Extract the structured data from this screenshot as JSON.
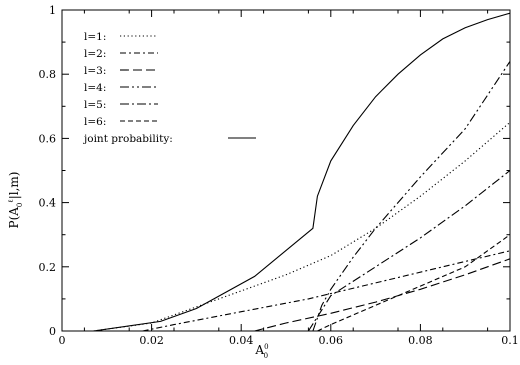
{
  "chart_data": {
    "type": "line",
    "xlabel": "A",
    "xlabel_super": "0",
    "xlabel_sub": "0",
    "ylabel": "P(A",
    "ylabel_sub": "0",
    "ylabel_super": "ℓ",
    "ylabel_tail": "|l,m)",
    "xlim": [
      0,
      0.1
    ],
    "ylim": [
      0,
      1
    ],
    "xticks": [
      0,
      0.02,
      0.04,
      0.06,
      0.08,
      0.1
    ],
    "xtick_labels": [
      "0",
      "0.02",
      "0.04",
      "0.06",
      "0.08",
      "0.1"
    ],
    "yticks": [
      0,
      0.2,
      0.4,
      0.6,
      0.8,
      1
    ],
    "ytick_labels": [
      "0",
      "0.2",
      "0.4",
      "0.6",
      "0.8",
      "1"
    ],
    "grid": false,
    "legend_position": "top-left",
    "series": [
      {
        "name": "l=1:",
        "dash": "1.2 2.6",
        "x": [
          0.007,
          0.02,
          0.03,
          0.04,
          0.05,
          0.06,
          0.07,
          0.08,
          0.09,
          0.1
        ],
        "y": [
          0.0,
          0.025,
          0.075,
          0.125,
          0.175,
          0.235,
          0.32,
          0.42,
          0.53,
          0.65
        ]
      },
      {
        "name": "l=2:",
        "dash": "6 3 2 3",
        "x": [
          0.018,
          0.025,
          0.04,
          0.055,
          0.07,
          0.085,
          0.1
        ],
        "y": [
          0.0,
          0.02,
          0.06,
          0.1,
          0.15,
          0.2,
          0.25
        ]
      },
      {
        "name": "l=3:",
        "dash": "9 4",
        "x": [
          0.043,
          0.05,
          0.06,
          0.07,
          0.08,
          0.09,
          0.1
        ],
        "y": [
          0.0,
          0.025,
          0.055,
          0.09,
          0.13,
          0.175,
          0.225
        ]
      },
      {
        "name": "l=4:",
        "dash": "9 3 2 3 2 3",
        "x": [
          0.056,
          0.058,
          0.06,
          0.065,
          0.07,
          0.08,
          0.09,
          0.1
        ],
        "y": [
          0.0,
          0.08,
          0.13,
          0.23,
          0.32,
          0.48,
          0.63,
          0.84
        ]
      },
      {
        "name": "l=5:",
        "dash": "9 3 2 3",
        "x": [
          0.055,
          0.06,
          0.07,
          0.08,
          0.09,
          0.1
        ],
        "y": [
          0.0,
          0.11,
          0.2,
          0.29,
          0.39,
          0.5
        ]
      },
      {
        "name": "l=6:",
        "dash": "5 3",
        "x": [
          0.057,
          0.06,
          0.07,
          0.08,
          0.09,
          0.1
        ],
        "y": [
          0.0,
          0.02,
          0.08,
          0.14,
          0.2,
          0.3
        ]
      },
      {
        "name": "joint probability:",
        "dash": "",
        "x": [
          0.007,
          0.022,
          0.03,
          0.043,
          0.056,
          0.057,
          0.06,
          0.065,
          0.07,
          0.075,
          0.08,
          0.085,
          0.09,
          0.095,
          0.1
        ],
        "y": [
          0.0,
          0.03,
          0.07,
          0.17,
          0.32,
          0.42,
          0.53,
          0.64,
          0.73,
          0.8,
          0.86,
          0.91,
          0.945,
          0.97,
          0.99
        ]
      }
    ]
  }
}
